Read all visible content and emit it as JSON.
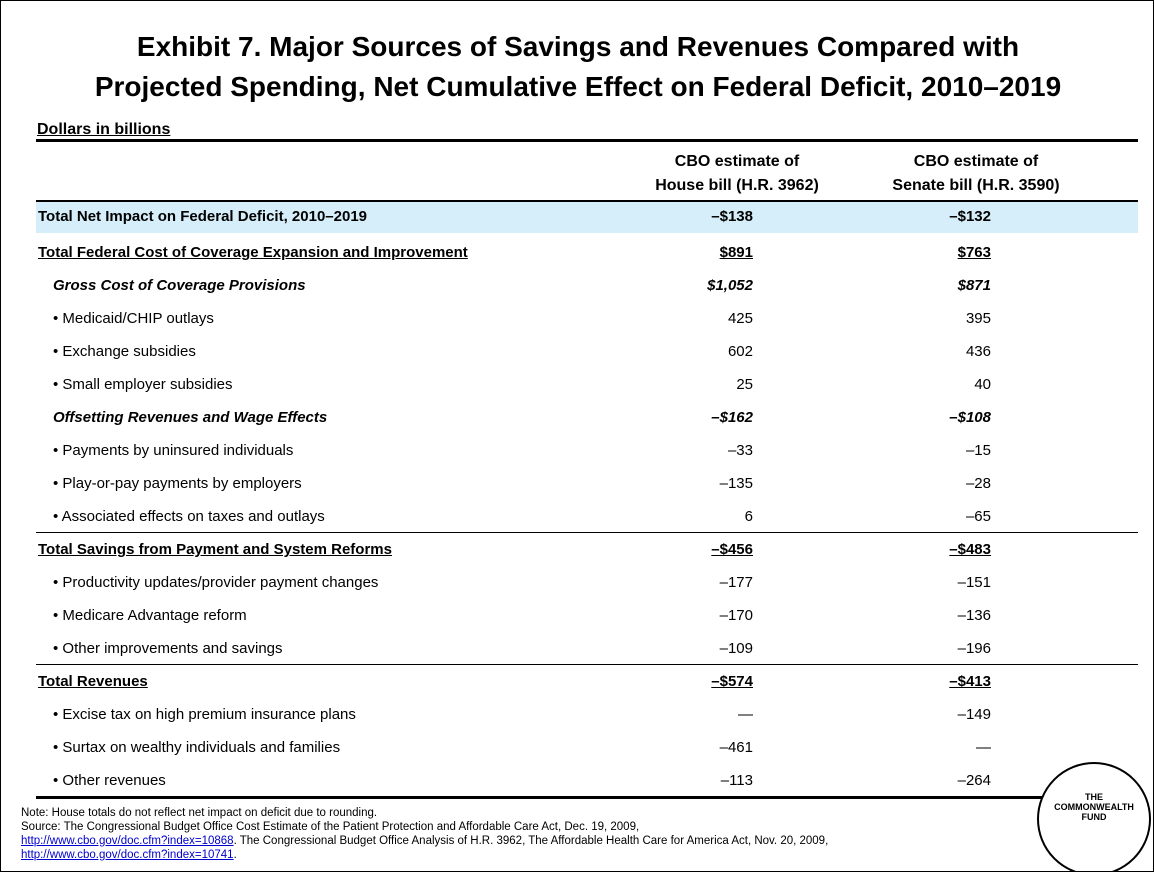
{
  "title": [
    "Exhibit 7. Major Sources of Savings and Revenues Compared with",
    "Projected Spending, Net Cumulative Effect on Federal Deficit, 2010–2019"
  ],
  "subtitle": "Dollars in billions",
  "table": {
    "columns": [
      [
        "CBO estimate of",
        "House bill (H.R. 3962)"
      ],
      [
        "CBO estimate of",
        "Senate bill (H.R. 3590)"
      ]
    ],
    "net": [
      "Total Net Impact on Federal Deficit, 2010–2019",
      "–$138",
      "–$132"
    ],
    "sections": [
      {
        "total": [
          "Total Federal Cost of Coverage Expansion and Improvement",
          "$891",
          "$763"
        ],
        "groups": [
          {
            "subtotal": [
              "Gross Cost of Coverage Provisions",
              "$1,052",
              "$871"
            ],
            "items": [
              [
                "• Medicaid/CHIP outlays",
                "425",
                "395"
              ],
              [
                "• Exchange subsidies",
                "602",
                "436"
              ],
              [
                "• Small employer subsidies",
                "25",
                "40"
              ]
            ]
          },
          {
            "subtotal": [
              "Offsetting Revenues and Wage Effects",
              "–$162",
              "–$108"
            ],
            "items": [
              [
                "• Payments by uninsured individuals",
                "–33",
                "–15"
              ],
              [
                "• Play-or-pay payments by employers",
                "–135",
                "–28"
              ],
              [
                "• Associated effects on taxes and outlays",
                "6",
                "–65"
              ]
            ]
          }
        ]
      },
      {
        "total": [
          "Total Savings from Payment and System Reforms",
          "–$456",
          "–$483"
        ],
        "groups": [
          {
            "items": [
              [
                "• Productivity updates/provider payment changes",
                "–177",
                "–151"
              ],
              [
                "• Medicare Advantage reform",
                "–170",
                "–136"
              ],
              [
                "• Other improvements and savings",
                "–109",
                "–196"
              ]
            ]
          }
        ]
      },
      {
        "total": [
          "Total Revenues",
          "–$574",
          "–$413"
        ],
        "groups": [
          {
            "items": [
              [
                "• Excise tax on high premium insurance plans",
                "—",
                "–149"
              ],
              [
                "• Surtax on wealthy individuals and families",
                "–461",
                "—"
              ],
              [
                "• Other revenues",
                "–113",
                "–264"
              ]
            ]
          }
        ]
      }
    ]
  },
  "notes": {
    "note": "Note: House totals do not reflect net impact on deficit due to rounding.",
    "source": [
      "Source: The Congressional Budget Office Cost Estimate of the Patient Protection and Affordable Care Act, Dec. 19, 2009,",
      "http://www.cbo.gov/doc.cfm?index=10868",
      ". The Congressional Budget Office Analysis of H.R. 3962, The Affordable Health Care for America Act, Nov. 20, 2009,",
      "http://www.cbo.gov/doc.cfm?index=10741",
      "."
    ]
  },
  "logo": [
    "THE",
    "COMMONWEALTH",
    "FUND"
  ]
}
